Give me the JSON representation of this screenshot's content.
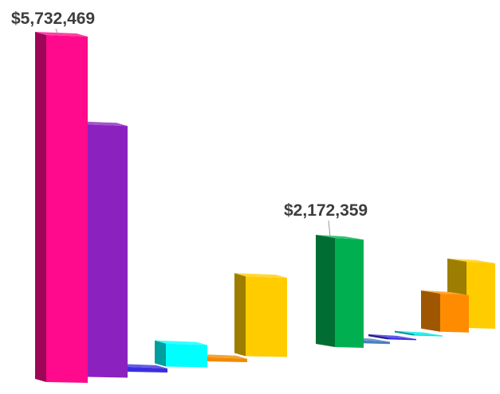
{
  "chart_data": {
    "type": "bar",
    "style": "3d-perspective",
    "title": "",
    "xlabel": "",
    "ylabel": "",
    "axes_visible": false,
    "grid": false,
    "legend": "none",
    "groups": [
      {
        "bars": [
          {
            "value": 5732469,
            "color": "#ff0a8c"
          },
          {
            "value": 4170000,
            "color": "#8b22c0"
          },
          {
            "value": 80000,
            "color": "#3a2ee0"
          },
          {
            "value": 380000,
            "color": "#00ffff"
          },
          {
            "value": 70000,
            "color": "#f08a00"
          },
          {
            "value": 1320000,
            "color": "#ffcc00"
          }
        ],
        "callout": {
          "bar": 0,
          "label": "$5,732,469"
        }
      },
      {
        "bars": [
          {
            "value": 2172359,
            "color": "#00b050"
          },
          {
            "value": 60000,
            "color": "#4a7fc0"
          },
          {
            "value": 40000,
            "color": "#3a2ee0"
          },
          {
            "value": 30000,
            "color": "#00e5e5"
          },
          {
            "value": 760000,
            "color": "#ff8c00"
          },
          {
            "value": 1320000,
            "color": "#ffcc00"
          }
        ],
        "callout": {
          "bar": 0,
          "label": "$2,172,359"
        }
      }
    ]
  }
}
